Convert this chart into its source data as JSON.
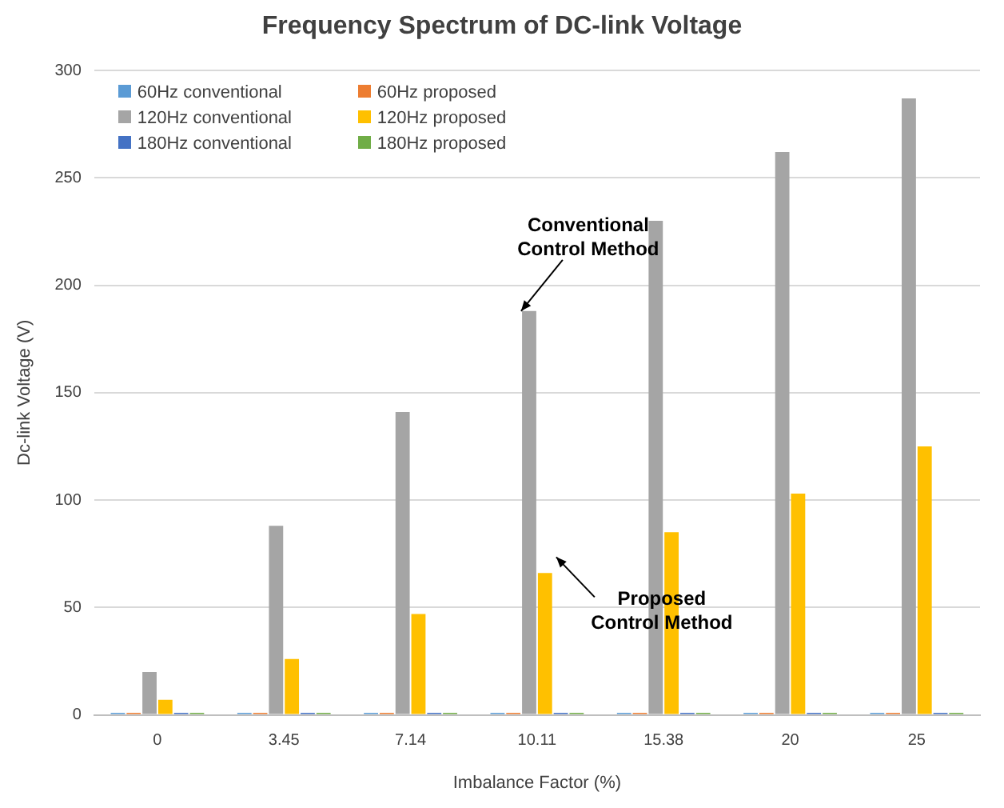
{
  "chart_data": {
    "type": "bar",
    "title": "Frequency Spectrum of DC-link Voltage",
    "xlabel": "Imbalance Factor (%)",
    "ylabel": "Dc-link Voltage (V)",
    "categories": [
      "0",
      "3.45",
      "7.14",
      "10.11",
      "15.38",
      "20",
      "25"
    ],
    "series": [
      {
        "name": "60Hz conventional",
        "color": "#5b9bd5",
        "values": [
          1,
          1,
          1,
          1,
          1,
          1,
          1
        ]
      },
      {
        "name": "60Hz proposed",
        "color": "#ed7d31",
        "values": [
          1,
          1,
          1,
          1,
          1,
          1,
          1
        ]
      },
      {
        "name": "120Hz conventional",
        "color": "#a5a5a5",
        "values": [
          20,
          88,
          141,
          188,
          230,
          262,
          287
        ]
      },
      {
        "name": "120Hz proposed",
        "color": "#ffc000",
        "values": [
          7,
          26,
          47,
          66,
          85,
          103,
          125
        ]
      },
      {
        "name": "180Hz conventional",
        "color": "#4472c4",
        "values": [
          1,
          1,
          1,
          1,
          1,
          1,
          1
        ]
      },
      {
        "name": "180Hz proposed",
        "color": "#70ad47",
        "values": [
          1,
          1,
          1,
          1,
          1,
          1,
          1
        ]
      }
    ],
    "ylim": [
      0,
      300
    ],
    "yticks": [
      0,
      50,
      100,
      150,
      200,
      250,
      300
    ],
    "grid": "y",
    "legend": "top left",
    "annotations": [
      {
        "text": "Conventional\nControl Method",
        "x": "10.11",
        "y": 188
      },
      {
        "text": "Proposed\nControl Method",
        "x": "10.11",
        "y": 66
      }
    ]
  }
}
